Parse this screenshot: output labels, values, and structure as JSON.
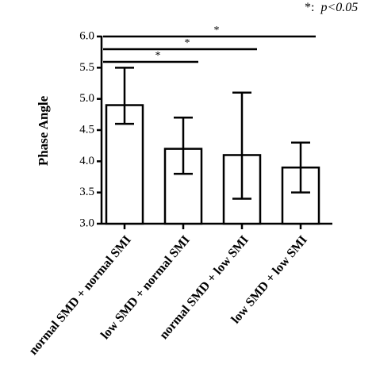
{
  "chart_data": {
    "type": "bar",
    "y_label": "Phase Angle",
    "annotation": {
      "symbol": "*:",
      "text": "p<0.05"
    },
    "categories": [
      "normal SMD + normal SMI",
      "low SMD + normal SMI",
      "normal SMD + low SMI",
      "low SMD + low SMI"
    ],
    "values": [
      4.9,
      4.2,
      4.1,
      3.9
    ],
    "error_minus": [
      0.3,
      0.4,
      0.7,
      0.4
    ],
    "error_plus": [
      0.6,
      0.5,
      1.0,
      0.4
    ],
    "color": "#ffffff",
    "ylim": [
      3.0,
      6.0
    ],
    "yticks": [
      {
        "value": 3.0,
        "label": "3.0"
      },
      {
        "value": 3.5,
        "label": "3.5"
      },
      {
        "value": 4.0,
        "label": "4.0"
      },
      {
        "value": 4.5,
        "label": "4.5"
      },
      {
        "value": 5.0,
        "label": "5.0"
      },
      {
        "value": 5.5,
        "label": "5.5"
      },
      {
        "value": 6.0,
        "label": "6.0"
      }
    ],
    "comparisons": [
      {
        "between": [
          0,
          1
        ],
        "label": "*"
      },
      {
        "between": [
          0,
          2
        ],
        "label": "*"
      },
      {
        "between": [
          0,
          3
        ],
        "label": "*"
      }
    ]
  }
}
